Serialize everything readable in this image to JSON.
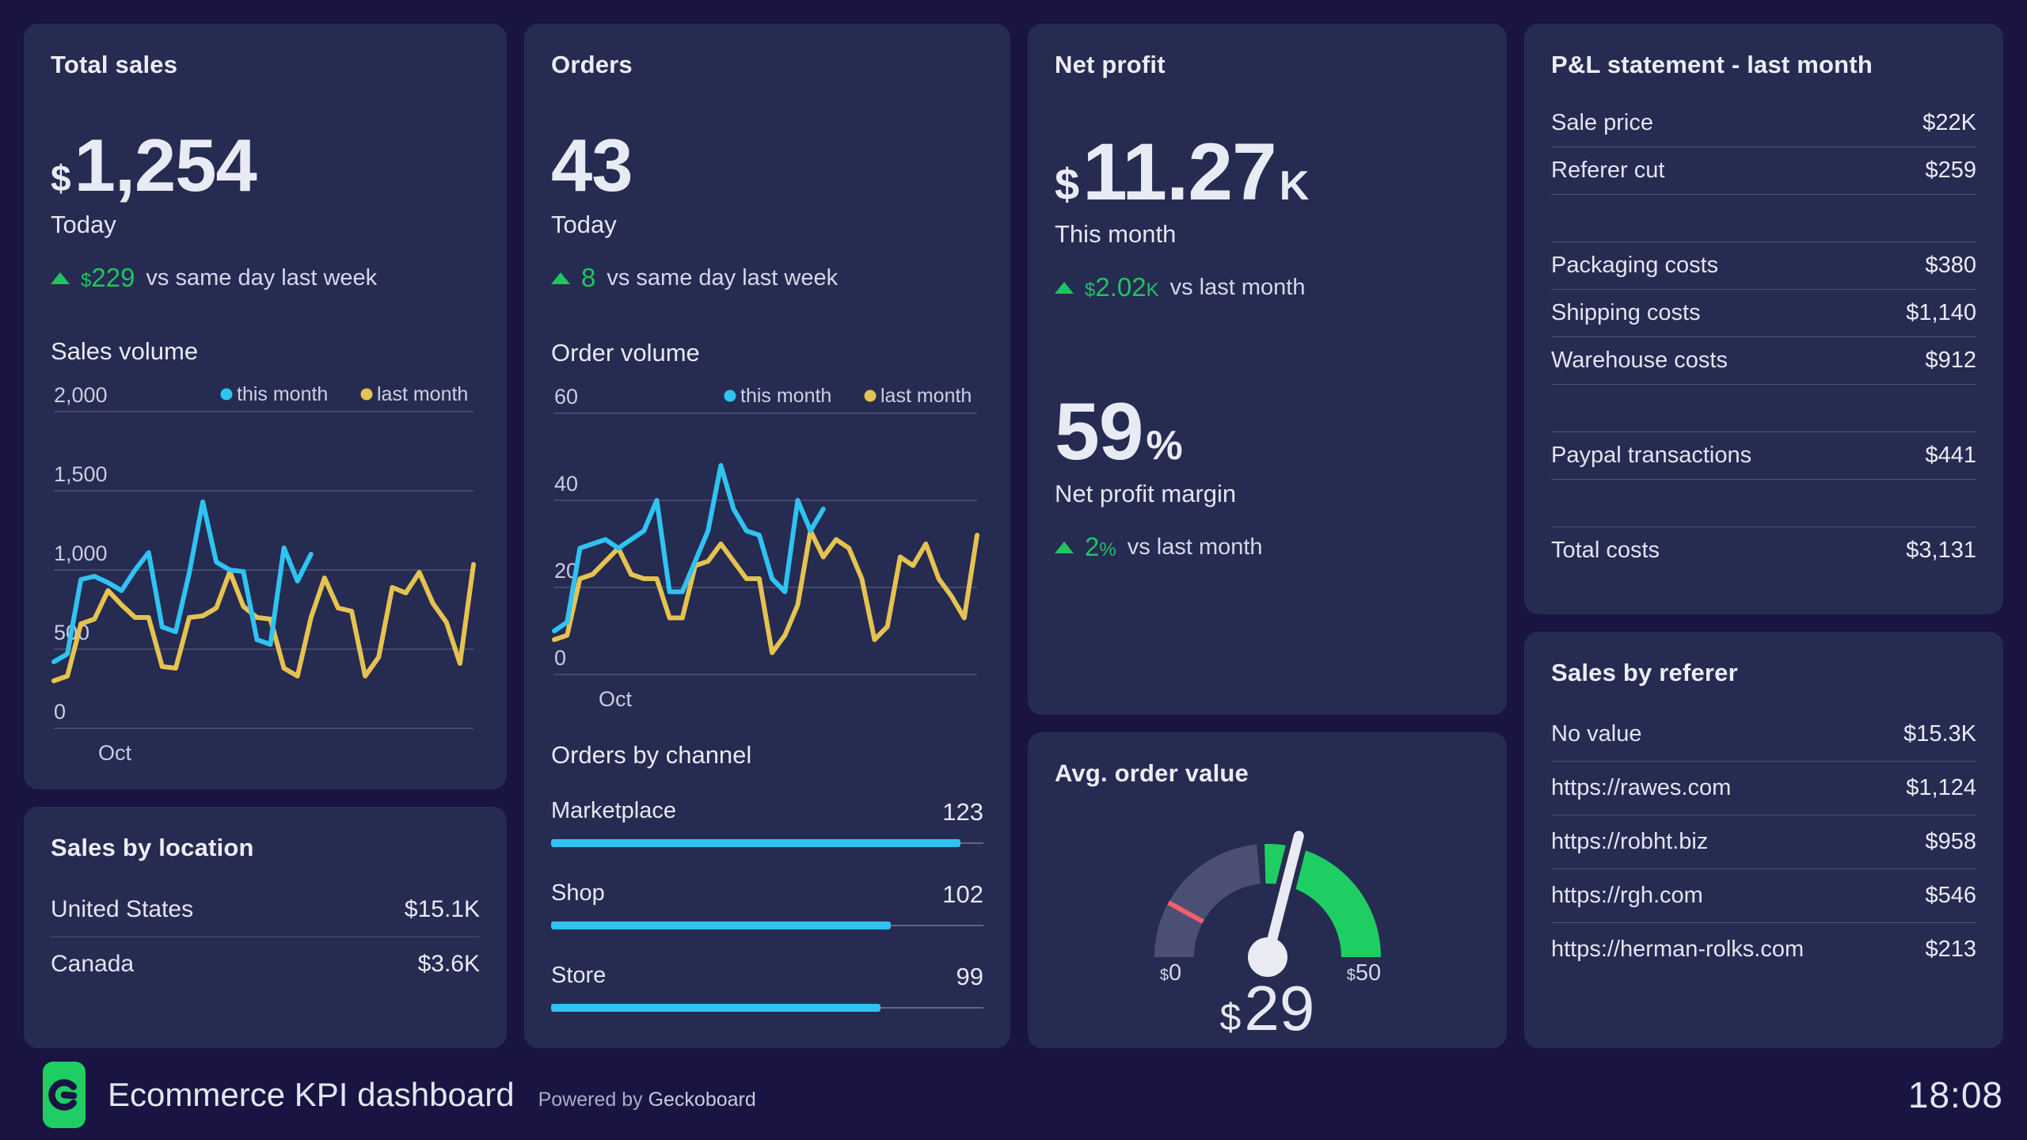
{
  "page": {
    "background": "#1a1442",
    "card_background": "#262b52",
    "time": "18:08",
    "footer": {
      "title": "Ecommerce KPI dashboard",
      "powered_prefix": "Powered by",
      "powered_brand": "Geckoboard",
      "logo_color": "#1fce62"
    }
  },
  "colors": {
    "accent_cyan": "#2fc3f2",
    "accent_yellow": "#e5c350",
    "positive_green": "#1fc55f",
    "grid_line": "rgba(255,255,255,0.14)",
    "divider": "rgba(255,255,255,0.18)",
    "gauge_track": "#4b4f74",
    "gauge_green": "#1fce62",
    "gauge_warn": "#f4606c"
  },
  "cards": {
    "total_sales": {
      "title": "Total sales",
      "currency": "$",
      "value": "1,254",
      "period": "Today",
      "delta": {
        "currency": "$",
        "number": "229",
        "text": "vs same day last week"
      },
      "section_title": "Sales volume"
    },
    "sales_by_location": {
      "title": "Sales by location",
      "rows": [
        {
          "label": "United States",
          "value": "$15.1K"
        },
        {
          "label": "Canada",
          "value": "$3.6K"
        }
      ]
    },
    "orders": {
      "title": "Orders",
      "value": "43",
      "period": "Today",
      "delta": {
        "currency": "",
        "number": "8",
        "text": "vs same day last week"
      },
      "volume_section_title": "Order volume",
      "channel_section_title": "Orders by channel"
    },
    "net_profit": {
      "title": "Net profit",
      "currency": "$",
      "value": "11.27",
      "suffix": "K",
      "period": "This month",
      "delta": {
        "currency": "$",
        "number": "2.02",
        "suffix": "K",
        "text": "vs last month"
      },
      "margin_value": "59",
      "margin_suffix": "%",
      "margin_label": "Net profit margin",
      "margin_delta": {
        "number": "2",
        "suffix": "%",
        "text": "vs last month"
      }
    },
    "avg_order_value": {
      "title": "Avg. order value",
      "min": {
        "currency": "$",
        "number": "0"
      },
      "max": {
        "currency": "$",
        "number": "50"
      },
      "value": {
        "currency": "$",
        "number": "29"
      }
    },
    "p_and_l": {
      "title": "P&L statement - last month",
      "rows": [
        {
          "label": "Sale price",
          "value": "$22K"
        },
        {
          "label": "Referer cut",
          "value": "$259"
        },
        {
          "spacer": true
        },
        {
          "label": "Packaging costs",
          "value": "$380"
        },
        {
          "label": "Shipping costs",
          "value": "$1,140"
        },
        {
          "label": "Warehouse costs",
          "value": "$912"
        },
        {
          "spacer": true
        },
        {
          "label": "Paypal transactions",
          "value": "$441"
        },
        {
          "spacer": true
        },
        {
          "label": "Total costs",
          "value": "$3,131"
        }
      ]
    },
    "sales_by_referer": {
      "title": "Sales by referer",
      "rows": [
        {
          "label": "No value",
          "value": "$15.3K"
        },
        {
          "label": "https://rawes.com",
          "value": "$1,124"
        },
        {
          "label": "https://robht.biz",
          "value": "$958"
        },
        {
          "label": "https://rgh.com",
          "value": "$546"
        },
        {
          "label": "https://herman-rolks.com",
          "value": "$213"
        }
      ]
    }
  },
  "chart_data": [
    {
      "type": "line",
      "title": "Sales volume",
      "xlabel": "Oct",
      "ylim": [
        0,
        2000
      ],
      "yticks": [
        [
          2000,
          "2,000"
        ],
        [
          1500,
          "1,500"
        ],
        [
          1000,
          "1,000"
        ],
        [
          500,
          "500"
        ],
        [
          0,
          "0"
        ]
      ],
      "grid": true,
      "legend_position": "top-right",
      "series": [
        {
          "name": "this month",
          "color": "#2fc3f2",
          "values": [
            420,
            470,
            940,
            960,
            920,
            870,
            1000,
            1110,
            640,
            610,
            980,
            1430,
            1050,
            1000,
            990,
            560,
            530,
            1140,
            930,
            1100
          ]
        },
        {
          "name": "last month",
          "color": "#e5c350",
          "values": [
            300,
            330,
            660,
            690,
            870,
            780,
            700,
            700,
            390,
            380,
            700,
            710,
            760,
            990,
            770,
            700,
            690,
            380,
            330,
            700,
            950,
            760,
            740,
            330,
            450,
            890,
            855,
            985,
            790,
            670,
            410,
            1035
          ]
        }
      ]
    },
    {
      "type": "line",
      "title": "Order volume",
      "xlabel": "Oct",
      "ylim": [
        0,
        60
      ],
      "yticks": [
        [
          60,
          "60"
        ],
        [
          40,
          "40"
        ],
        [
          20,
          "20"
        ],
        [
          0,
          "0"
        ]
      ],
      "grid": true,
      "legend_position": "top-right",
      "series": [
        {
          "name": "this month",
          "color": "#2fc3f2",
          "values": [
            10,
            12,
            29,
            30,
            31,
            29,
            31,
            33,
            40,
            19,
            19,
            26,
            33,
            48,
            38,
            33,
            32,
            22,
            19,
            40,
            33,
            38
          ]
        },
        {
          "name": "last month",
          "color": "#e5c350",
          "values": [
            8,
            9,
            22,
            23,
            26,
            29,
            23,
            22,
            22,
            13,
            13,
            25,
            26,
            30,
            26,
            22,
            22,
            5,
            9,
            16,
            33,
            27,
            31,
            29,
            22,
            8,
            11,
            27,
            25,
            30,
            22,
            18,
            13,
            32
          ]
        }
      ]
    },
    {
      "type": "bar",
      "title": "Orders by channel",
      "max": 130,
      "bar_color": "#2fc3f2",
      "items": [
        {
          "label": "Marketplace",
          "value": 123,
          "display": "123"
        },
        {
          "label": "Shop",
          "value": 102,
          "display": "102"
        },
        {
          "label": "Store",
          "value": 99,
          "display": "99"
        }
      ]
    },
    {
      "type": "gauge",
      "title": "Avg. order value",
      "min": 0,
      "max": 50,
      "value": 29,
      "green_from": 24,
      "warn_tick": 8,
      "track_color": "#4b4f74",
      "green_color": "#1fce62",
      "warn_color": "#f4606c",
      "needle_color": "#e9eaf2"
    }
  ]
}
